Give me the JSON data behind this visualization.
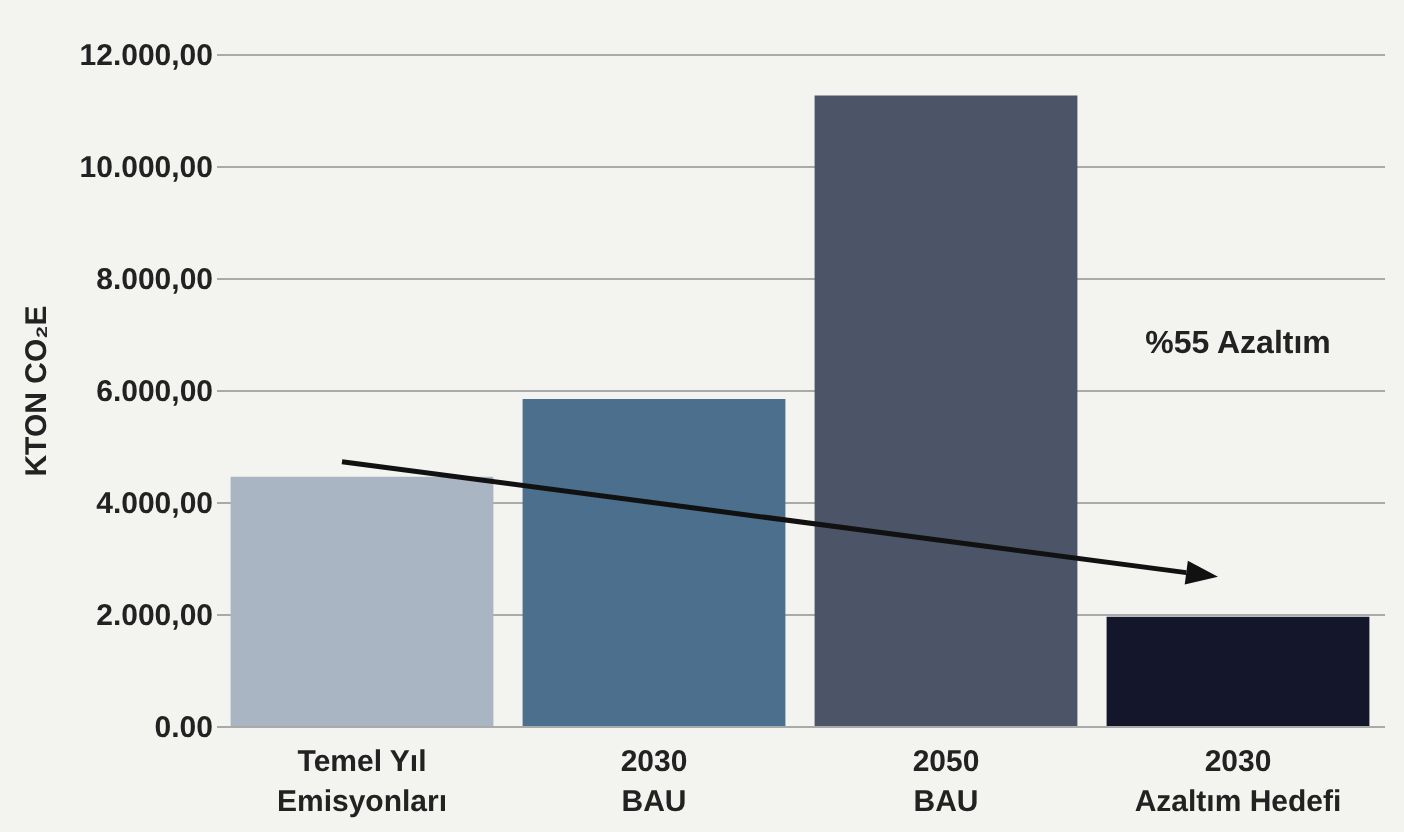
{
  "chart_data": {
    "type": "bar",
    "ylabel": "KTON CO₂E",
    "categories": [
      "Temel Yıl\nEmisyonları",
      "2030\nBAU",
      "2050\nBAU",
      "2030\nAzaltım Hedefi"
    ],
    "values": [
      4450,
      5840,
      11260,
      1950
    ],
    "colors": [
      "#a9b5c3",
      "#4b6f8c",
      "#4b5567",
      "#14162b"
    ],
    "ylim": [
      0,
      12000
    ],
    "yticks": [
      {
        "value": 0,
        "label": "0.00"
      },
      {
        "value": 2000,
        "label": "2.000,00"
      },
      {
        "value": 4000,
        "label": "4.000,00"
      },
      {
        "value": 6000,
        "label": "6.000,00"
      },
      {
        "value": 8000,
        "label": "8.000,00"
      },
      {
        "value": 10000,
        "label": "10.000,00"
      },
      {
        "value": 12000,
        "label": "12.000,00"
      }
    ],
    "grid": "y",
    "legend": false,
    "annotations": [
      "%55 Azaltım"
    ]
  }
}
